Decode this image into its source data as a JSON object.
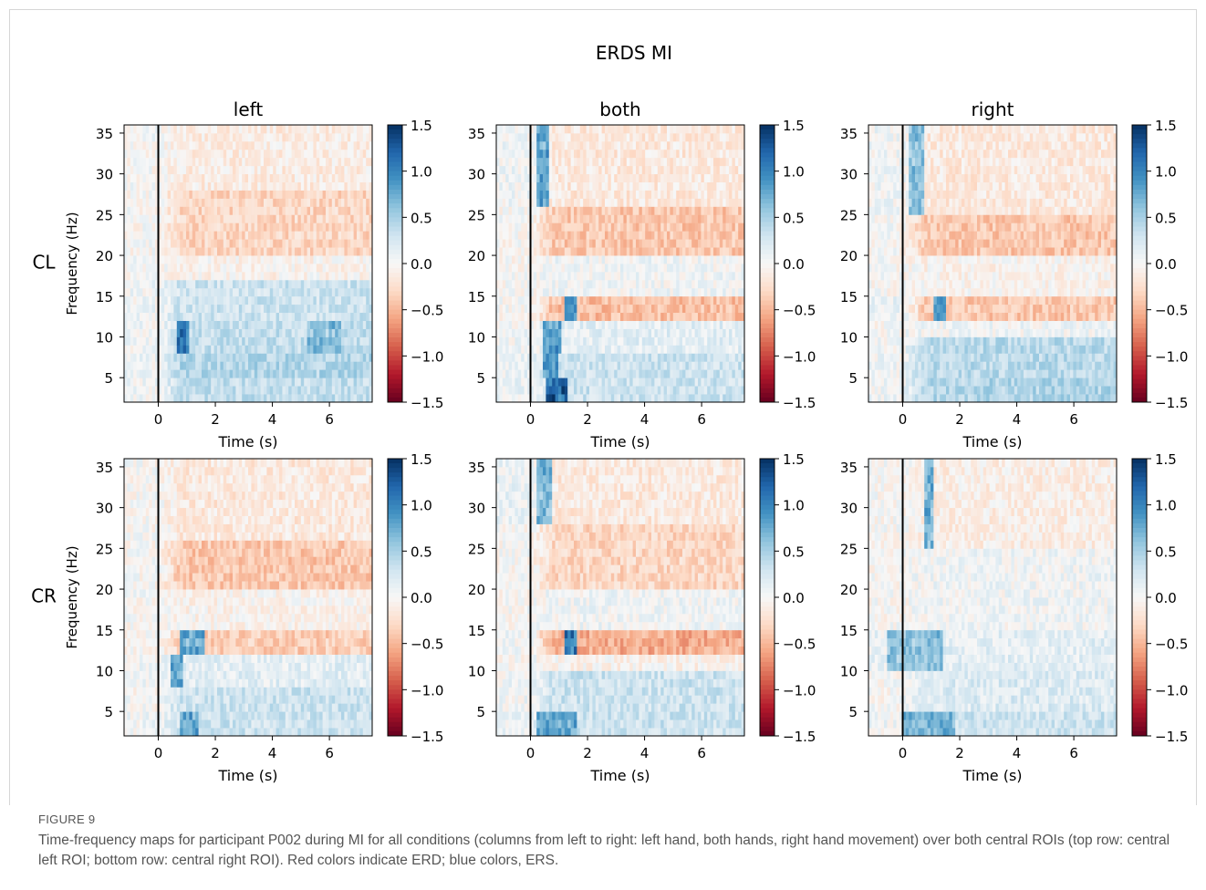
{
  "figure": {
    "label": "FIGURE 9",
    "caption": "Time-frequency maps for participant P002 during MI for all conditions (columns from left to right: left hand, both hands, right hand movement) over both central ROIs (top row: central left ROI; bottom row: central right ROI). Red colors indicate ERD; blue colors, ERS."
  },
  "chart_data": {
    "type": "heatmap",
    "title": "ERDS MI",
    "columns": [
      "left",
      "both",
      "right"
    ],
    "rows": [
      "CL",
      "CR"
    ],
    "xlabel": "Time (s)",
    "ylabel": "Frequency (Hz)",
    "xlim": [
      -1.2,
      7.5
    ],
    "ylim": [
      2,
      36
    ],
    "xticks": [
      "0",
      "2",
      "4",
      "6"
    ],
    "yticks": [
      "5",
      "10",
      "15",
      "20",
      "25",
      "30",
      "35"
    ],
    "event_line_x": 0,
    "colorbar": {
      "range": [
        -1.5,
        1.5
      ],
      "ticks": [
        "1.5",
        "1.0",
        "0.5",
        "0.0",
        "−0.5",
        "−1.0",
        "−1.5"
      ],
      "colormap": "RdBu",
      "low_color": "#67001f",
      "mid_color": "#f7f7f7",
      "high_color": "#053061"
    },
    "panels": [
      {
        "row": "CL",
        "condition": "left",
        "freq_bands": [
          {
            "freq": [
              2,
              5
            ],
            "baseline": 0.05,
            "post": 0.35
          },
          {
            "freq": [
              5,
              8
            ],
            "baseline": 0.05,
            "post": 0.45
          },
          {
            "freq": [
              8,
              12
            ],
            "baseline": 0.05,
            "post": 0.35,
            "hotspots": [
              {
                "t": [
                  0.6,
                  1.1
                ],
                "v": 1.2
              },
              {
                "t": [
                  5.2,
                  6.4
                ],
                "v": 0.7
              }
            ]
          },
          {
            "freq": [
              12,
              17
            ],
            "baseline": 0.05,
            "post": 0.3
          },
          {
            "freq": [
              17,
              20
            ],
            "baseline": 0.0,
            "post": -0.05
          },
          {
            "freq": [
              20,
              28
            ],
            "baseline": 0.0,
            "post": -0.3
          },
          {
            "freq": [
              28,
              36
            ],
            "baseline": 0.0,
            "post": -0.12
          }
        ]
      },
      {
        "row": "CL",
        "condition": "both",
        "freq_bands": [
          {
            "freq": [
              2,
              5
            ],
            "baseline": 0.1,
            "post": 0.3,
            "hotspots": [
              {
                "t": [
                  0.5,
                  1.3
                ],
                "v": 1.4
              }
            ]
          },
          {
            "freq": [
              5,
              8
            ],
            "baseline": 0.1,
            "post": 0.3,
            "hotspots": [
              {
                "t": [
                  0.4,
                  1.0
                ],
                "v": 1.0
              }
            ]
          },
          {
            "freq": [
              8,
              12
            ],
            "baseline": 0.05,
            "post": 0.15,
            "hotspots": [
              {
                "t": [
                  0.4,
                  1.1
                ],
                "v": 1.0
              }
            ]
          },
          {
            "freq": [
              12,
              15
            ],
            "baseline": 0.0,
            "post": -0.45,
            "hotspots": [
              {
                "t": [
                  1.2,
                  1.6
                ],
                "v": 1.1
              }
            ]
          },
          {
            "freq": [
              15,
              20
            ],
            "baseline": 0.0,
            "post": 0.05
          },
          {
            "freq": [
              20,
              26
            ],
            "baseline": 0.0,
            "post": -0.4
          },
          {
            "freq": [
              26,
              36
            ],
            "baseline": 0.05,
            "post": -0.15,
            "hotspots": [
              {
                "t": [
                  0.2,
                  0.7
                ],
                "v": 0.9
              }
            ]
          }
        ]
      },
      {
        "row": "CL",
        "condition": "right",
        "freq_bands": [
          {
            "freq": [
              2,
              5
            ],
            "baseline": 0.05,
            "post": 0.45
          },
          {
            "freq": [
              5,
              10
            ],
            "baseline": 0.05,
            "post": 0.4
          },
          {
            "freq": [
              10,
              12
            ],
            "baseline": 0.0,
            "post": 0.05
          },
          {
            "freq": [
              12,
              15
            ],
            "baseline": 0.1,
            "post": -0.4,
            "hotspots": [
              {
                "t": [
                  1.1,
                  1.5
                ],
                "v": 1.0
              }
            ]
          },
          {
            "freq": [
              15,
              20
            ],
            "baseline": 0.0,
            "post": -0.05
          },
          {
            "freq": [
              20,
              25
            ],
            "baseline": 0.0,
            "post": -0.4
          },
          {
            "freq": [
              25,
              36
            ],
            "baseline": 0.05,
            "post": -0.15,
            "hotspots": [
              {
                "t": [
                  0.2,
                  0.8
                ],
                "v": 0.7
              }
            ]
          }
        ]
      },
      {
        "row": "CR",
        "condition": "left",
        "freq_bands": [
          {
            "freq": [
              2,
              5
            ],
            "baseline": 0.05,
            "post": 0.3,
            "hotspots": [
              {
                "t": [
                  0.8,
                  1.4
                ],
                "v": 0.9
              }
            ]
          },
          {
            "freq": [
              5,
              8
            ],
            "baseline": 0.0,
            "post": 0.3
          },
          {
            "freq": [
              8,
              12
            ],
            "baseline": 0.05,
            "post": 0.15,
            "hotspots": [
              {
                "t": [
                  0.4,
                  0.9
                ],
                "v": 0.9
              }
            ]
          },
          {
            "freq": [
              12,
              15
            ],
            "baseline": 0.0,
            "post": -0.35,
            "hotspots": [
              {
                "t": [
                  0.8,
                  1.6
                ],
                "v": 0.9
              }
            ]
          },
          {
            "freq": [
              15,
              20
            ],
            "baseline": 0.0,
            "post": -0.05
          },
          {
            "freq": [
              20,
              26
            ],
            "baseline": 0.0,
            "post": -0.4
          },
          {
            "freq": [
              26,
              36
            ],
            "baseline": 0.0,
            "post": -0.15
          }
        ]
      },
      {
        "row": "CR",
        "condition": "both",
        "freq_bands": [
          {
            "freq": [
              2,
              5
            ],
            "baseline": 0.1,
            "post": 0.3,
            "hotspots": [
              {
                "t": [
                  0.2,
                  1.6
                ],
                "v": 0.9
              }
            ]
          },
          {
            "freq": [
              5,
              10
            ],
            "baseline": 0.05,
            "post": 0.3
          },
          {
            "freq": [
              10,
              12
            ],
            "baseline": 0.0,
            "post": -0.05
          },
          {
            "freq": [
              12,
              15
            ],
            "baseline": 0.05,
            "post": -0.55,
            "hotspots": [
              {
                "t": [
                  1.2,
                  1.6
                ],
                "v": 1.2
              }
            ]
          },
          {
            "freq": [
              15,
              20
            ],
            "baseline": 0.0,
            "post": 0.05
          },
          {
            "freq": [
              20,
              28
            ],
            "baseline": 0.0,
            "post": -0.3
          },
          {
            "freq": [
              28,
              36
            ],
            "baseline": 0.1,
            "post": -0.15,
            "hotspots": [
              {
                "t": [
                  0.2,
                  0.8
                ],
                "v": 0.8
              }
            ]
          }
        ]
      },
      {
        "row": "CR",
        "condition": "right",
        "freq_bands": [
          {
            "freq": [
              2,
              5
            ],
            "baseline": 0.05,
            "post": 0.3,
            "hotspots": [
              {
                "t": [
                  0.0,
                  1.8
                ],
                "v": 0.8
              }
            ]
          },
          {
            "freq": [
              5,
              10
            ],
            "baseline": 0.0,
            "post": 0.2
          },
          {
            "freq": [
              10,
              15
            ],
            "baseline": 0.1,
            "post": 0.15,
            "hotspots": [
              {
                "t": [
                  -0.6,
                  1.4
                ],
                "v": 0.7
              }
            ]
          },
          {
            "freq": [
              15,
              25
            ],
            "baseline": 0.0,
            "post": 0.05
          },
          {
            "freq": [
              25,
              36
            ],
            "baseline": 0.0,
            "post": -0.1,
            "hotspots": [
              {
                "t": [
                  0.8,
                  1.1
                ],
                "v": 0.8
              }
            ]
          }
        ]
      }
    ]
  }
}
